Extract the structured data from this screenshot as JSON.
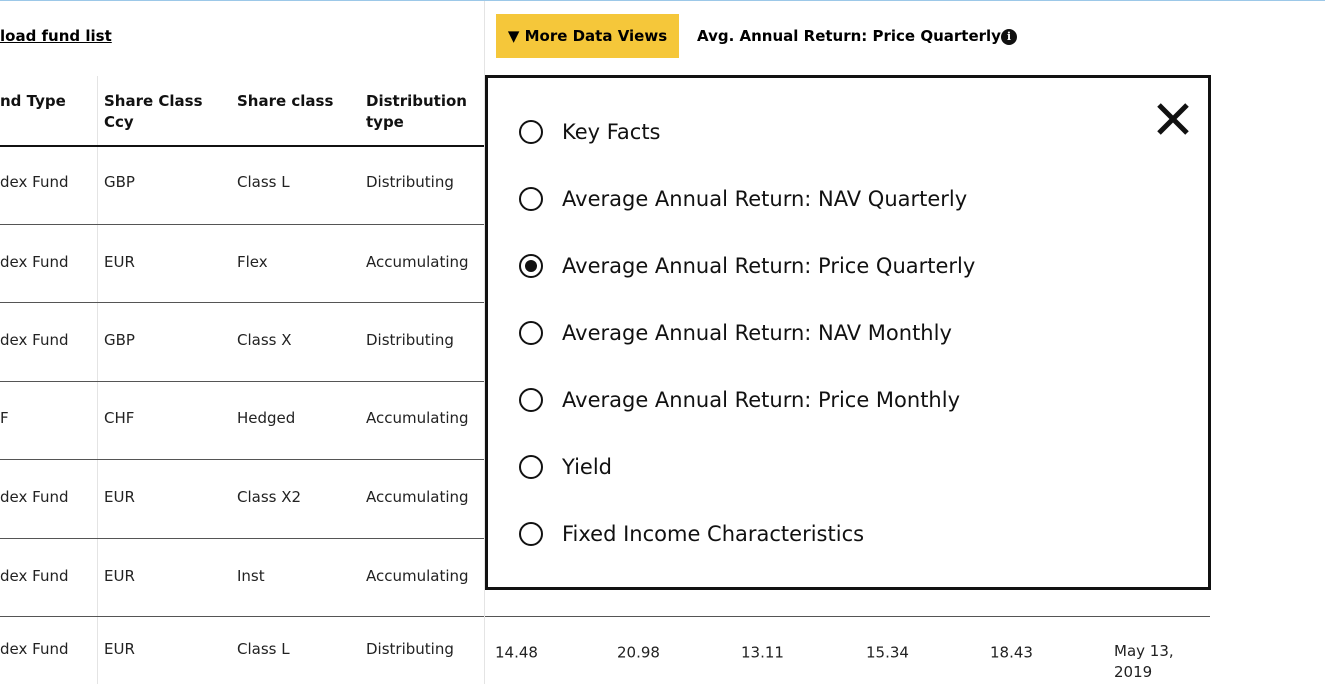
{
  "toolbar": {
    "download_link": "load fund list",
    "more_button": "▼ More Data Views",
    "current_view": "Avg. Annual Return: Price Quarterly"
  },
  "table": {
    "headers": [
      "nd Type",
      "Share Class Ccy",
      "Share class",
      "Distribution type"
    ],
    "rows": [
      [
        "dex Fund",
        "GBP",
        "Class L",
        "Distributing"
      ],
      [
        "dex Fund",
        "EUR",
        "Flex",
        "Accumulating"
      ],
      [
        "dex Fund",
        "GBP",
        "Class X",
        "Distributing"
      ],
      [
        "F",
        "CHF",
        "Hedged",
        "Accumulating"
      ],
      [
        "dex Fund",
        "EUR",
        "Class X2",
        "Accumulating"
      ],
      [
        "dex Fund",
        "EUR",
        "Inst",
        "Accumulating"
      ],
      [
        "dex Fund",
        "EUR",
        "Class L",
        "Distributing"
      ]
    ],
    "last_row_values": [
      14.48,
      20.98,
      13.11,
      15.34,
      18.43,
      "May 13, 2019"
    ]
  },
  "popup": {
    "options": [
      "Key Facts",
      "Average Annual Return: NAV Quarterly",
      "Average Annual Return: Price Quarterly",
      "Average Annual Return: NAV Monthly",
      "Average Annual Return: Price Monthly",
      "Yield",
      "Fixed Income Characteristics"
    ],
    "selected": 2
  }
}
